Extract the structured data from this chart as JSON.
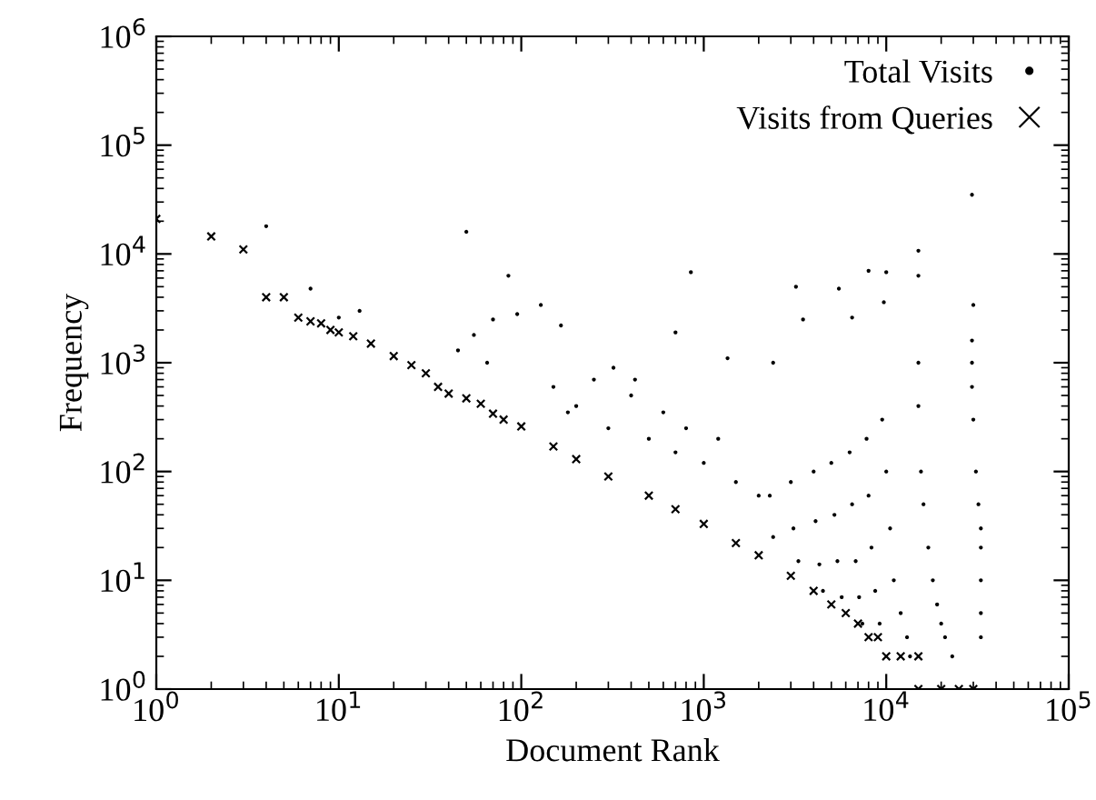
{
  "chart_data": {
    "type": "scatter",
    "xlabel": "Document Rank",
    "ylabel": "Frequency",
    "log": "xy",
    "legend": "top right",
    "grid": false,
    "xlim": [
      1,
      100000
    ],
    "ylim": [
      1,
      1000000
    ],
    "xticks": [
      {
        "value": 1,
        "label": "10$^{0}$"
      },
      {
        "value": 10,
        "label": "10$^{1}$"
      },
      {
        "value": 100,
        "label": "10$^{2}$"
      },
      {
        "value": 1000,
        "label": "10$^{3}$"
      },
      {
        "value": 10000,
        "label": "10$^{4}$"
      },
      {
        "value": 100000,
        "label": "10$^{5}$"
      }
    ],
    "yticks": [
      {
        "value": 1,
        "label": "10$^{0}$"
      },
      {
        "value": 10,
        "label": "10$^{1}$"
      },
      {
        "value": 100,
        "label": "10$^{2}$"
      },
      {
        "value": 1000,
        "label": "10$^{3}$"
      },
      {
        "value": 10000,
        "label": "10$^{4}$"
      },
      {
        "value": 100000,
        "label": "10$^{5}$"
      },
      {
        "value": 1000000,
        "label": "10$^{6}$"
      }
    ],
    "series": [
      {
        "name": "Total Visits",
        "color": "#000000",
        "marker": "circle",
        "x": [
          4,
          7,
          10,
          13,
          50,
          85,
          70,
          95,
          128,
          165,
          55,
          45,
          65,
          320,
          420,
          850,
          3200,
          5500,
          8000,
          10000,
          15000,
          30000,
          3500,
          6500,
          9700,
          700,
          1350,
          2400,
          29500,
          29500,
          29500,
          30000,
          31000,
          32000,
          33000,
          33000,
          33000,
          33000,
          33000,
          15000,
          15000,
          15000,
          15500,
          16000,
          17000,
          18000,
          19000,
          20000,
          21000,
          23000,
          9500,
          10000,
          10500,
          11000,
          12000,
          13000,
          13500,
          7800,
          8000,
          8300,
          8700,
          9200,
          6300,
          6500,
          6800,
          7100,
          7400,
          5000,
          5200,
          5400,
          5700,
          4000,
          4100,
          4300,
          4500,
          3000,
          3100,
          3300,
          2300,
          2400,
          200,
          300,
          500,
          700,
          1000,
          1500,
          2000,
          400,
          600,
          800,
          1200,
          150,
          250,
          180,
          29500
        ],
        "values": [
          18000,
          4800,
          2600,
          3000,
          16000,
          6300,
          2500,
          2800,
          3400,
          2200,
          1800,
          1300,
          1000,
          900,
          700,
          6800,
          5000,
          4800,
          7000,
          6800,
          10700,
          3400,
          2500,
          2600,
          3600,
          1900,
          1100,
          1000,
          1600,
          1000,
          600,
          300,
          100,
          50,
          30,
          20,
          10,
          5,
          3,
          6300,
          1000,
          400,
          100,
          50,
          20,
          10,
          6,
          4,
          3,
          2,
          300,
          100,
          30,
          10,
          5,
          3,
          2,
          200,
          60,
          20,
          8,
          4,
          150,
          50,
          15,
          7,
          4,
          120,
          40,
          15,
          7,
          100,
          35,
          14,
          8,
          80,
          30,
          15,
          60,
          25,
          400,
          250,
          200,
          150,
          120,
          80,
          60,
          500,
          350,
          250,
          200,
          600,
          700,
          350,
          35000
        ]
      },
      {
        "name": "Visits from Queries",
        "color": "#000000",
        "marker": "cross",
        "x": [
          1,
          2,
          3,
          4,
          5,
          6,
          7,
          8,
          9,
          10,
          12,
          15,
          20,
          25,
          30,
          35,
          40,
          50,
          60,
          70,
          80,
          100,
          150,
          200,
          300,
          500,
          700,
          1000,
          1500,
          2000,
          3000,
          4000,
          5000,
          6000,
          7000,
          8000,
          9000,
          10000,
          12000,
          15000,
          15000,
          20000,
          25000,
          30000
        ],
        "values": [
          21000,
          14500,
          11000,
          4000,
          4000,
          2600,
          2400,
          2300,
          2000,
          1900,
          1750,
          1500,
          1150,
          950,
          800,
          600,
          520,
          470,
          420,
          340,
          300,
          260,
          170,
          130,
          90,
          60,
          45,
          33,
          22,
          17,
          11,
          8,
          6,
          5,
          4,
          3,
          3,
          2,
          2,
          2,
          1,
          1,
          1,
          1
        ]
      }
    ]
  }
}
